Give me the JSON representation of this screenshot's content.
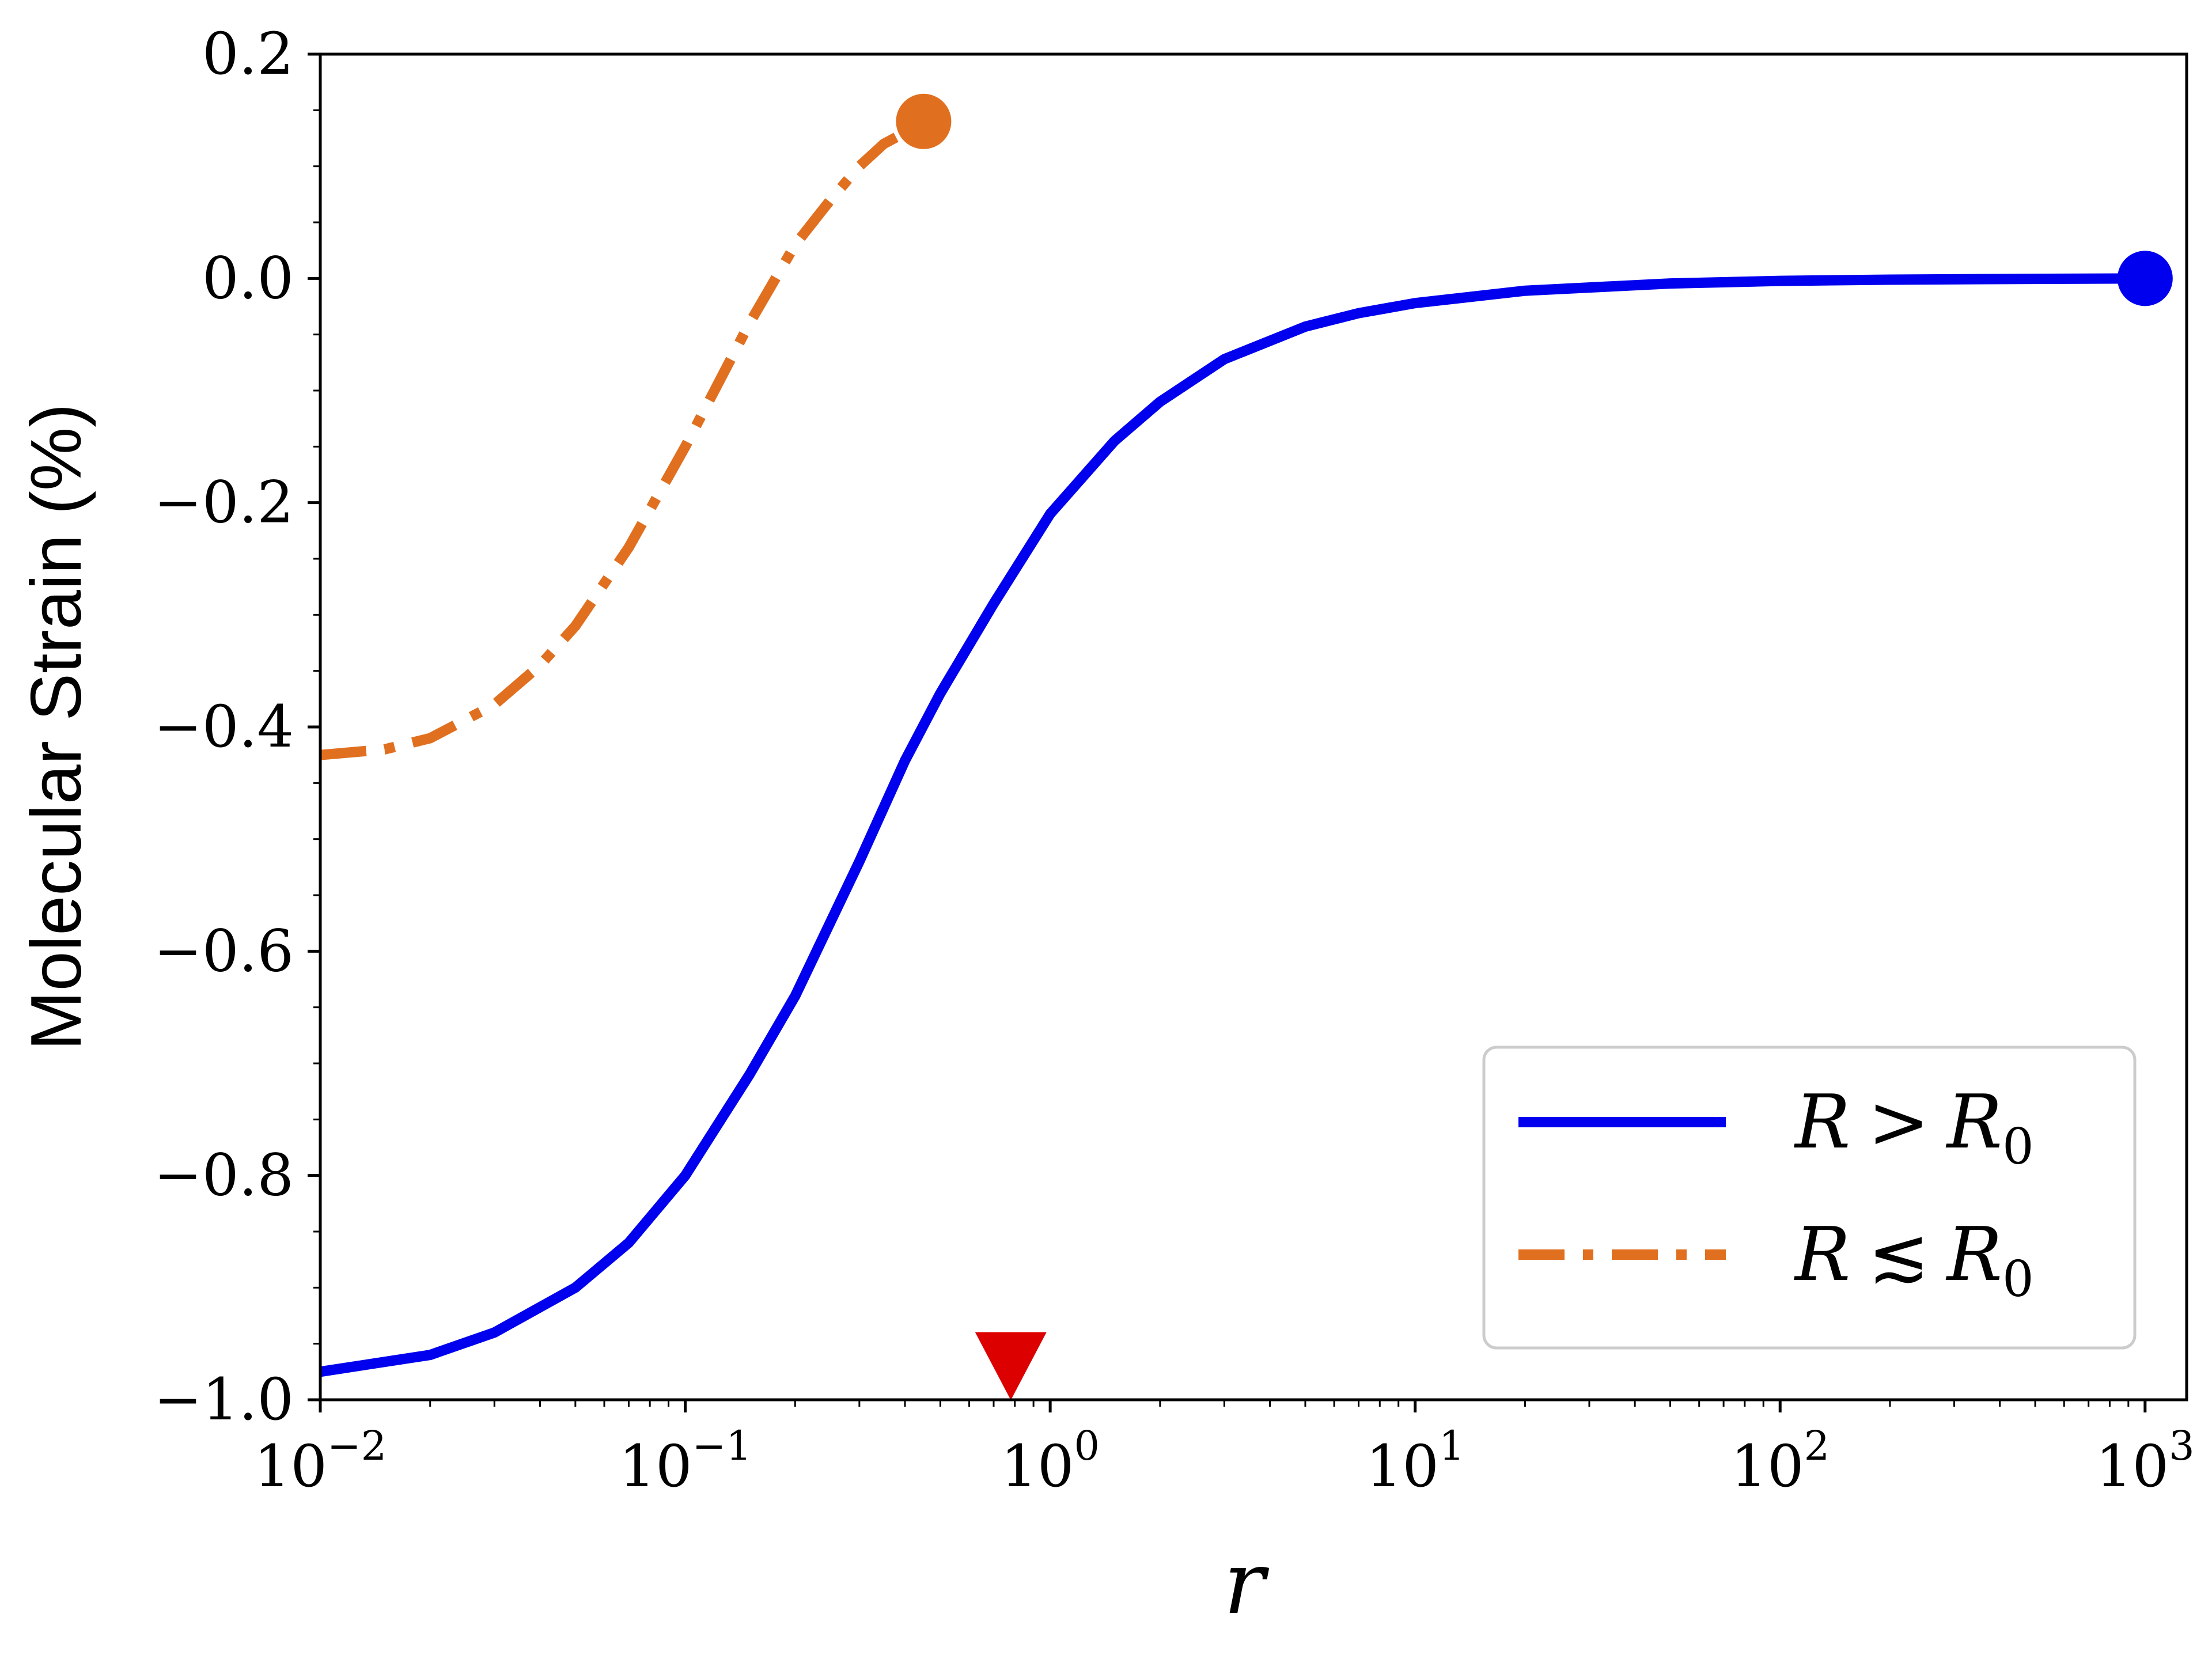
{
  "chart_data": {
    "type": "line",
    "title": "",
    "xlabel": "r",
    "ylabel": "Molecular Strain (%)",
    "xscale": "log",
    "xlim": [
      0.01,
      1300
    ],
    "ylim": [
      -1.0,
      0.2
    ],
    "grid": false,
    "legend_position": "lower-right",
    "x_ticks": [
      {
        "base": "10",
        "exp": "−2",
        "value": 0.01
      },
      {
        "base": "10",
        "exp": "−1",
        "value": 0.1
      },
      {
        "base": "10",
        "exp": "0",
        "value": 1
      },
      {
        "base": "10",
        "exp": "1",
        "value": 10
      },
      {
        "base": "10",
        "exp": "2",
        "value": 100
      },
      {
        "base": "10",
        "exp": "3",
        "value": 1000
      }
    ],
    "y_ticks": [
      {
        "label": "0.2",
        "value": 0.2
      },
      {
        "label": "0.0",
        "value": 0.0
      },
      {
        "label": "−0.2",
        "value": -0.2
      },
      {
        "label": "−0.4",
        "value": -0.4
      },
      {
        "label": "−0.6",
        "value": -0.6
      },
      {
        "label": "−0.8",
        "value": -0.8
      },
      {
        "label": "−1.0",
        "value": -1.0
      }
    ],
    "series": [
      {
        "name": "R > R0",
        "legend": {
          "var": "R",
          "op": ">",
          "rhs": "R",
          "sub": "0"
        },
        "color": "#0000ee",
        "style": "solid",
        "endpoint_marker": "circle",
        "x": [
          0.01,
          0.02,
          0.03,
          0.05,
          0.07,
          0.1,
          0.15,
          0.2,
          0.3,
          0.4,
          0.5,
          0.7,
          1.0,
          1.5,
          2,
          3,
          5,
          7,
          10,
          20,
          50,
          100,
          200,
          500,
          1000
        ],
        "y": [
          -0.975,
          -0.96,
          -0.94,
          -0.9,
          -0.86,
          -0.8,
          -0.71,
          -0.64,
          -0.52,
          -0.43,
          -0.37,
          -0.29,
          -0.21,
          -0.145,
          -0.11,
          -0.072,
          -0.043,
          -0.031,
          -0.022,
          -0.011,
          -0.0045,
          -0.0022,
          -0.0011,
          -0.0004,
          0.0
        ]
      },
      {
        "name": "R ≲ R0",
        "legend": {
          "var": "R",
          "op": "≲",
          "rhs": "R",
          "sub": "0"
        },
        "color": "#e07020",
        "style": "dash-dot",
        "endpoint_marker": "circle",
        "x": [
          0.01,
          0.015,
          0.02,
          0.03,
          0.04,
          0.05,
          0.07,
          0.1,
          0.15,
          0.2,
          0.25,
          0.3,
          0.35,
          0.4,
          0.45
        ],
        "y": [
          -0.425,
          -0.42,
          -0.41,
          -0.38,
          -0.345,
          -0.31,
          -0.24,
          -0.15,
          -0.04,
          0.03,
          0.07,
          0.1,
          0.12,
          0.13,
          0.14
        ]
      }
    ],
    "annotations": [
      {
        "type": "marker",
        "shape": "triangle-down",
        "color": "#dd0000",
        "x": 0.78,
        "y": -0.97
      }
    ]
  }
}
